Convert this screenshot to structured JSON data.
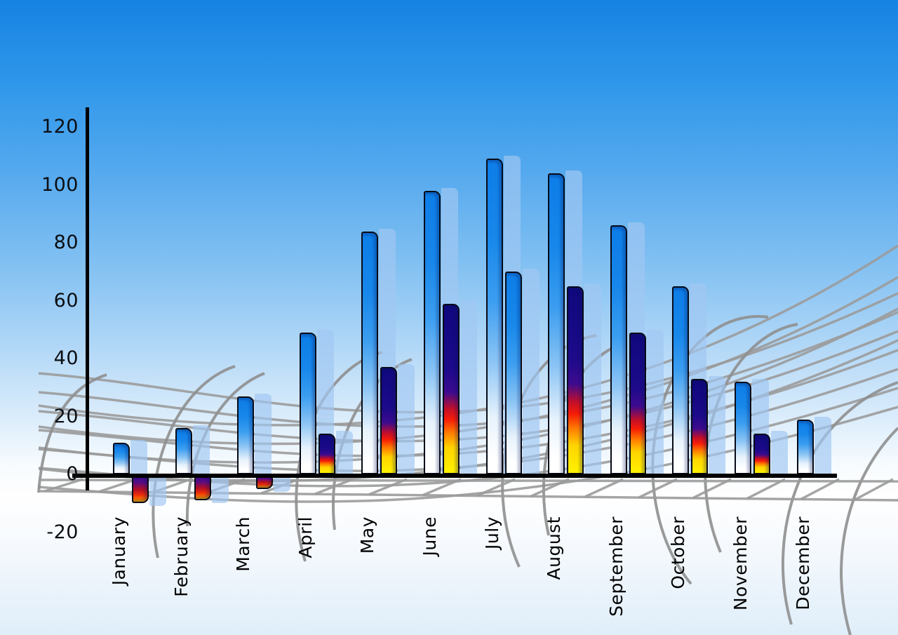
{
  "chart_data": {
    "type": "bar",
    "title": "",
    "xlabel": "",
    "ylabel": "",
    "categories": [
      "January",
      "February",
      "March",
      "April",
      "May",
      "June",
      "July",
      "August",
      "September",
      "October",
      "November",
      "December"
    ],
    "series": [
      {
        "name": "series-1-blue",
        "values": [
          11,
          16,
          27,
          49,
          84,
          98,
          109,
          104,
          86,
          65,
          32,
          19
        ]
      },
      {
        "name": "series-2-multicolor",
        "values": [
          -10,
          -9,
          -5,
          14,
          37,
          59,
          70,
          65,
          49,
          33,
          14,
          null
        ],
        "bar_styles": [
          "multi",
          "multi",
          "multi",
          "multi",
          "multi",
          "multi",
          "blue",
          "multi",
          "multi",
          "multi",
          "multi",
          null
        ]
      }
    ],
    "yticks": [
      120,
      100,
      80,
      60,
      40,
      20,
      0,
      -20
    ],
    "ylim": [
      -20,
      120
    ],
    "grid": "decorative-perspective-mesh",
    "legend": "none",
    "colors": {
      "sky_top": "#1682e2",
      "bar_blue": "#0d7de8",
      "bar_navy": "#10087d",
      "bar_red": "#f51b07",
      "bar_orange": "#ff7c00",
      "bar_yellow": "#fff200",
      "bar_shadow": "#a0c7f2",
      "mesh_gray": "#9b9b9b",
      "axis_black": "#000000"
    }
  }
}
